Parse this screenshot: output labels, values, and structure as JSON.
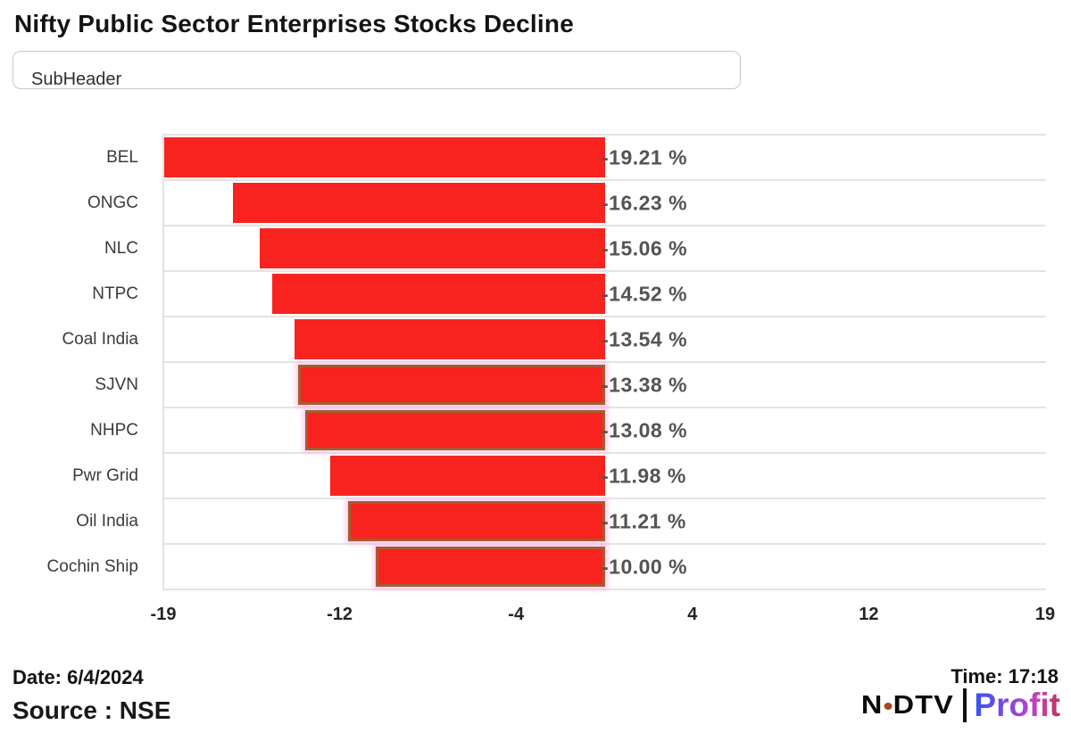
{
  "header": {
    "title": "Nifty Public Sector Enterprises Stocks Decline",
    "subheader_value": "SubHeader"
  },
  "chart_data": {
    "type": "bar",
    "orientation": "horizontal",
    "title": "Nifty Public Sector Enterprises Stocks Decline",
    "categories": [
      "BEL",
      "ONGC",
      "NLC",
      "NTPC",
      "Coal India",
      "SJVN",
      "NHPC",
      "Pwr Grid",
      "Oil India",
      "Cochin Ship"
    ],
    "values": [
      -19.21,
      -16.23,
      -15.06,
      -14.52,
      -13.54,
      -13.38,
      -13.08,
      -11.98,
      -11.21,
      -10.0
    ],
    "value_labels": [
      "-19.21 %",
      "-16.23 %",
      "-15.06 %",
      "-14.52 %",
      "-13.54 %",
      "-13.38 %",
      "-13.08 %",
      "-11.98 %",
      "-11.21 %",
      "-10.00 %"
    ],
    "unit": "%",
    "xlim": [
      -19.21,
      19.21
    ],
    "x_ticks": [
      {
        "value": -19.21,
        "label": "-19"
      },
      {
        "value": -11.53,
        "label": "-12"
      },
      {
        "value": -3.84,
        "label": "-4"
      },
      {
        "value": 3.84,
        "label": "4"
      },
      {
        "value": 11.53,
        "label": "12"
      },
      {
        "value": 19.21,
        "label": "19"
      }
    ],
    "legend": "none",
    "grid": "row separator lines only",
    "bar_color": "#f8231e",
    "value_label_color": "#545454",
    "highlighted_indices": [
      5,
      6,
      8,
      9
    ],
    "highlight_border_color": "#a15f2e",
    "highlight_glow_color": "rgba(255,170,235,0.6)"
  },
  "footer": {
    "date": "Date: 6/4/2024",
    "source": "Source : NSE",
    "time": "Time: 17:18"
  },
  "logo": {
    "ndtv_n": "N",
    "ndtv_dtv": "DTV",
    "profit": "Profit"
  }
}
